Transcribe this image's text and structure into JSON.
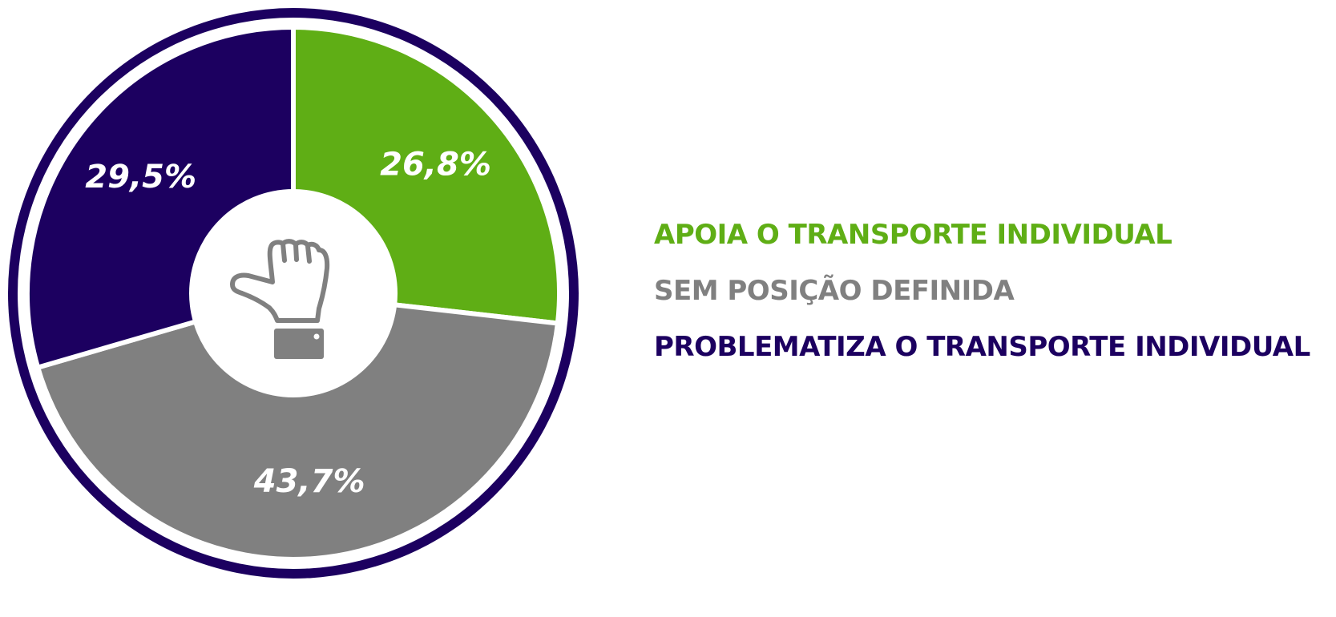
{
  "chart_data": {
    "type": "pie",
    "categories": [
      "APOIA O TRANSPORTE INDIVIDUAL",
      "SEM POSIÇÃO DEFINIDA",
      "PROBLEMATIZA O TRANSPORTE INDIVIDUAL"
    ],
    "values": [
      26.8,
      43.7,
      29.5
    ],
    "value_labels": [
      "26,8%",
      "43,7%",
      "29,5%"
    ],
    "colors": [
      "#5fae15",
      "#808080",
      "#1c0060"
    ],
    "title": "",
    "legend_position": "right",
    "center_icon": "hand-holding-phone-icon"
  },
  "legend": [
    {
      "label": "APOIA O TRANSPORTE INDIVIDUAL",
      "color": "#5fae15"
    },
    {
      "label": "SEM POSIÇÃO DEFINIDA",
      "color": "#808080"
    },
    {
      "label": "PROBLEMATIZA O TRANSPORTE INDIVIDUAL",
      "color": "#1c0060"
    }
  ],
  "colors": {
    "ring": "#1c0060",
    "separator": "#ffffff",
    "background": "#ffffff",
    "icon": "#808080"
  }
}
